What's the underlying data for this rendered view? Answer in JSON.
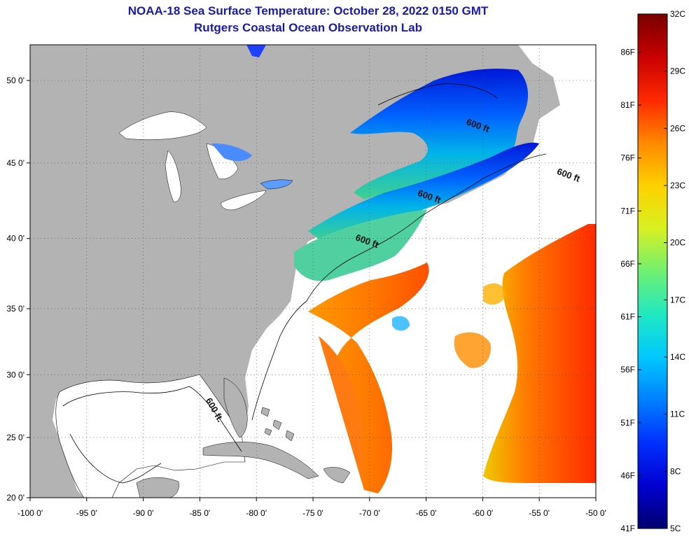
{
  "header": {
    "title": "NOAA-18 Sea Surface Temperature:  October 28, 2022 0150 GMT",
    "subtitle": "Rutgers Coastal Ocean Observation Lab"
  },
  "map": {
    "lon_ticks": [
      "-100 0'",
      "-95 0'",
      "-90 0'",
      "-85 0'",
      "-80 0'",
      "-75 0'",
      "-70 0'",
      "-65 0'",
      "-60 0'",
      "-55 0'",
      "-50 0'"
    ],
    "lat_ticks": [
      "50 0'",
      "45 0'",
      "40 0'",
      "35 0'",
      "30 0'",
      "25 0'",
      "20 0'"
    ],
    "contour_label": "600 ft",
    "contour_labels": [
      {
        "text": "600 ft",
        "lon": -61.5,
        "lat": 47.4
      },
      {
        "text": "600 ft",
        "lon": -53.5,
        "lat": 44.3
      },
      {
        "text": "600 ft",
        "lon": -65.8,
        "lat": 42.9
      },
      {
        "text": "600 ft",
        "lon": -71.3,
        "lat": 39.9
      },
      {
        "text": "600 ft.",
        "lon": -84.5,
        "lat": 28.0
      }
    ],
    "colors": {
      "land": "#b3b3b3",
      "water": "#ffffff",
      "grid": "#555555"
    }
  },
  "colorbar": {
    "celsius": [
      "32C",
      "29C",
      "26C",
      "23C",
      "20C",
      "17C",
      "14C",
      "11C",
      "8C",
      "5C"
    ],
    "fahrenheit": [
      "86F",
      "81F",
      "76F",
      "71F",
      "66F",
      "61F",
      "56F",
      "51F",
      "46F",
      "41F"
    ],
    "range_c": [
      5,
      32
    ],
    "colors": [
      "#00006e",
      "#0000d0",
      "#0030ff",
      "#0080ff",
      "#00c8ff",
      "#20e8c0",
      "#70f070",
      "#d8f020",
      "#ffd000",
      "#ff8800",
      "#ff2800",
      "#c80000",
      "#780000"
    ]
  }
}
